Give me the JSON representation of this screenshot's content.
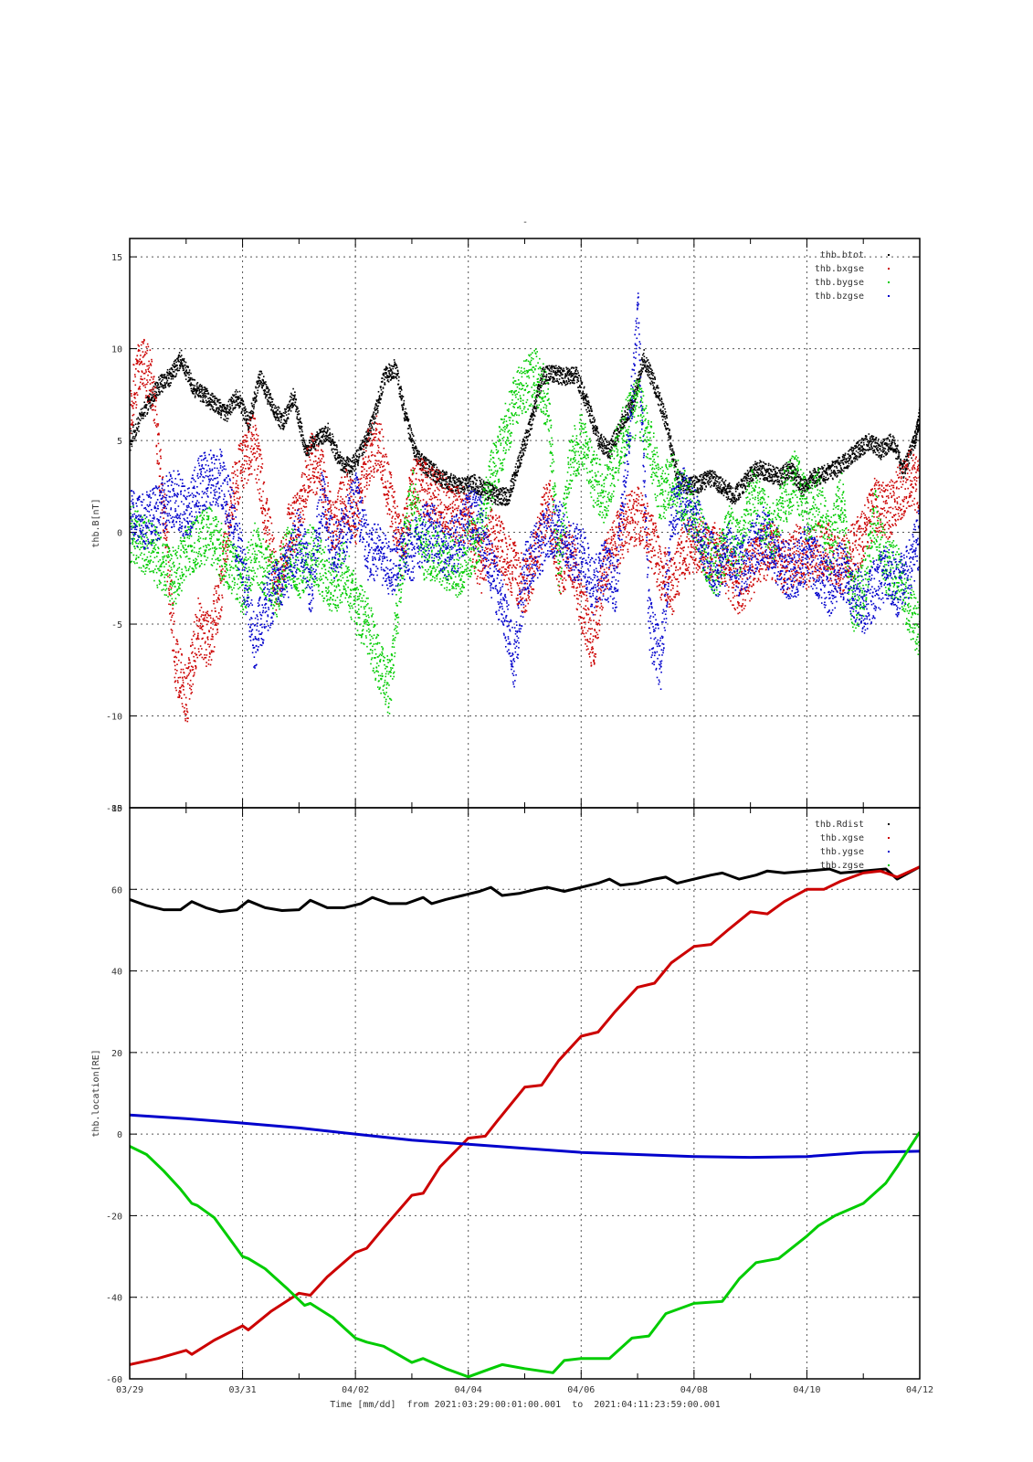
{
  "page_title": "-",
  "xlabel": "Time [mm/dd]  from 2021:03:29:00:01:00.001  to  2021:04:11:23:59:00.001",
  "x_ticks": [
    "03/29",
    "03/31",
    "04/02",
    "04/04",
    "04/06",
    "04/08",
    "04/10",
    "04/12"
  ],
  "chart_data": [
    {
      "type": "scatter",
      "ylabel": "thb.B[nT]",
      "xlim": [
        "03/29",
        "04/12"
      ],
      "ylim": [
        -15,
        16
      ],
      "y_ticks": [
        -15,
        -10,
        -5,
        0,
        5,
        10,
        15
      ],
      "grid": true,
      "legend_position": "top-right",
      "x_unit": "days since 03/29 00:00 UT",
      "series": [
        {
          "name": "thb.btot",
          "color": "#000000",
          "x": [
            0,
            0.3,
            0.5,
            0.7,
            0.9,
            1.1,
            1.3,
            1.5,
            1.7,
            1.9,
            2.1,
            2.3,
            2.5,
            2.7,
            2.9,
            3.1,
            3.3,
            3.5,
            3.7,
            3.9,
            4.1,
            4.3,
            4.5,
            4.7,
            4.9,
            5.1,
            5.3,
            5.5,
            5.7,
            5.9,
            6.1,
            6.3,
            6.5,
            6.7,
            6.9,
            7.1,
            7.3,
            7.5,
            7.7,
            7.9,
            8.1,
            8.3,
            8.5,
            8.7,
            8.9,
            9.1,
            9.3,
            9.5,
            9.7,
            9.9,
            10.1,
            10.3,
            10.5,
            10.7,
            10.9,
            11.1,
            11.3,
            11.5,
            11.7,
            11.9,
            12.1,
            12.3,
            12.5,
            12.7,
            12.9,
            13.1,
            13.3,
            13.5,
            13.7,
            13.9,
            14
          ],
          "y": [
            5,
            7,
            8,
            8.5,
            9.5,
            8,
            7.5,
            7,
            6.5,
            7.5,
            6,
            8.5,
            7,
            6,
            7.5,
            4.5,
            5,
            5.5,
            4,
            3.5,
            4.5,
            6,
            8.5,
            9,
            6,
            4,
            3.5,
            3,
            2.7,
            2.5,
            2.7,
            2.3,
            2,
            2,
            4,
            6,
            8.5,
            8.7,
            8.5,
            8.6,
            7,
            5,
            4.5,
            6,
            7,
            9.5,
            8,
            6,
            3,
            2.5,
            2.7,
            3,
            2.5,
            2,
            2.8,
            3.5,
            3.3,
            3,
            3.5,
            2.5,
            3,
            3.2,
            3.5,
            4,
            4.5,
            5,
            4.5,
            5,
            3.5,
            5,
            6.5
          ]
        },
        {
          "name": "thb.bxgse",
          "color": "#cc0000",
          "x": [
            0,
            0.2,
            0.4,
            0.6,
            0.8,
            1,
            1.2,
            1.4,
            1.6,
            1.8,
            2,
            2.2,
            2.4,
            2.6,
            2.8,
            3,
            3.2,
            3.4,
            3.6,
            3.8,
            4,
            4.2,
            4.4,
            4.6,
            4.8,
            5,
            5.2,
            5.4,
            5.6,
            5.8,
            6,
            6.2,
            6.4,
            6.6,
            6.8,
            7,
            7.2,
            7.4,
            7.6,
            7.8,
            8,
            8.2,
            8.4,
            8.6,
            8.8,
            9,
            9.2,
            9.4,
            9.6,
            9.8,
            10,
            10.2,
            10.4,
            10.6,
            10.8,
            11,
            11.2,
            11.4,
            11.6,
            11.8,
            12,
            12.2,
            12.4,
            12.6,
            12.8,
            13,
            13.2,
            13.4,
            13.6,
            13.8,
            14
          ],
          "y": [
            7,
            9.5,
            8,
            1,
            -7,
            -9,
            -5,
            -6,
            -3,
            2,
            4,
            5,
            1,
            -3,
            0,
            1,
            4,
            3,
            0,
            2,
            1,
            4,
            5,
            2,
            -1,
            2.5,
            2.5,
            2,
            1.5,
            1,
            1,
            -2,
            0,
            -1,
            -2,
            -3,
            -1,
            2,
            -2,
            -1,
            -4,
            -6,
            -2,
            -0.5,
            0.5,
            1,
            0,
            -2,
            -3,
            -1,
            -0.5,
            -1,
            -1,
            -2,
            -3,
            -2,
            -1,
            -1,
            -2,
            -1,
            -1.5,
            -1,
            -1,
            -2,
            -1,
            0,
            1.5,
            1,
            2,
            3,
            2.5
          ]
        },
        {
          "name": "thb.bygse",
          "color": "#00cc00",
          "x": [
            0,
            0.2,
            0.4,
            0.6,
            0.8,
            1,
            1.2,
            1.4,
            1.6,
            1.8,
            2,
            2.2,
            2.4,
            2.6,
            2.8,
            3,
            3.2,
            3.4,
            3.6,
            3.8,
            4,
            4.2,
            4.4,
            4.6,
            4.8,
            5,
            5.2,
            5.4,
            5.6,
            5.8,
            6,
            6.2,
            6.4,
            6.6,
            6.8,
            7,
            7.2,
            7.4,
            7.6,
            7.8,
            8,
            8.2,
            8.4,
            8.6,
            8.8,
            9,
            9.2,
            9.4,
            9.6,
            9.8,
            10,
            10.2,
            10.4,
            10.6,
            10.8,
            11,
            11.2,
            11.4,
            11.6,
            11.8,
            12,
            12.2,
            12.4,
            12.6,
            12.8,
            13,
            13.2,
            13.4,
            13.6,
            13.8,
            14
          ],
          "y": [
            0,
            -0.5,
            -1,
            -2,
            -2.5,
            -1,
            -0.5,
            0,
            -1,
            -2,
            -3,
            -1,
            -2,
            -3,
            -1,
            -2,
            -1,
            -2,
            -3,
            -2,
            -4,
            -5,
            -7,
            -8.5,
            -2,
            2,
            -1,
            -1,
            -1.5,
            -2,
            -1,
            0,
            3,
            5,
            7,
            8,
            8.5,
            7,
            -2,
            4,
            5,
            3,
            2,
            4,
            6,
            7,
            5,
            2,
            3,
            2,
            1,
            -1,
            -2,
            0,
            -1,
            2,
            1,
            0,
            2,
            3,
            1,
            2,
            -1,
            2,
            -4,
            -3,
            1,
            -2,
            -2,
            -4,
            -5.5
          ]
        },
        {
          "name": "thb.bzgse",
          "color": "#0000cc",
          "x": [
            0,
            0.2,
            0.4,
            0.6,
            0.8,
            1,
            1.2,
            1.4,
            1.6,
            1.8,
            2,
            2.2,
            2.4,
            2.6,
            2.8,
            3,
            3.2,
            3.4,
            3.6,
            3.8,
            4,
            4.2,
            4.4,
            4.6,
            4.8,
            5,
            5.2,
            5.4,
            5.6,
            5.8,
            6,
            6.2,
            6.4,
            6.6,
            6.8,
            7,
            7.2,
            7.4,
            7.6,
            7.8,
            8,
            8.2,
            8.4,
            8.6,
            8.8,
            9,
            9.2,
            9.4,
            9.6,
            9.8,
            10,
            10.2,
            10.4,
            10.6,
            10.8,
            11,
            11.2,
            11.4,
            11.6,
            11.8,
            12,
            12.2,
            12.4,
            12.6,
            12.8,
            13,
            13.2,
            13.4,
            13.6,
            13.8,
            14
          ],
          "y": [
            1,
            0.5,
            0.8,
            1.5,
            2,
            1,
            2.5,
            3,
            3,
            1,
            -2,
            -6,
            -4,
            -3,
            -2,
            0,
            -3,
            2,
            -1,
            0,
            2,
            -1,
            -1,
            -2,
            -1,
            -1,
            0,
            0,
            -1,
            -0.5,
            1,
            0.5,
            -2,
            -4,
            -7,
            -2,
            -1,
            0,
            0.5,
            -1,
            -1,
            -3,
            -2,
            -3,
            4,
            12,
            -5,
            -7,
            1,
            2,
            1,
            -1,
            -2,
            -1,
            -2,
            -1,
            0,
            -1,
            -2,
            -2,
            -1,
            -2,
            -3,
            -2,
            -3,
            -4,
            -3,
            -2,
            -3,
            -2,
            0
          ]
        }
      ]
    },
    {
      "type": "line",
      "ylabel": "thb.location[RE]",
      "xlim": [
        "03/29",
        "04/12"
      ],
      "ylim": [
        -60,
        80
      ],
      "y_ticks": [
        -60,
        -40,
        -20,
        0,
        20,
        40,
        60,
        80
      ],
      "grid": true,
      "legend_position": "top-right",
      "x_unit": "days since 03/29 00:00 UT",
      "series": [
        {
          "name": "thb.Rdist",
          "color": "#000000",
          "x": [
            0,
            0.3,
            0.6,
            0.9,
            1.1,
            1.35,
            1.6,
            1.9,
            2.1,
            2.4,
            2.7,
            3,
            3.2,
            3.5,
            3.8,
            4.1,
            4.3,
            4.6,
            4.9,
            5.2,
            5.35,
            5.6,
            5.9,
            6.2,
            6.4,
            6.6,
            6.9,
            7.2,
            7.4,
            7.7,
            8,
            8.3,
            8.5,
            8.7,
            9,
            9.3,
            9.5,
            9.7,
            10,
            10.3,
            10.5,
            10.8,
            11.1,
            11.3,
            11.6,
            12,
            12.4,
            12.6,
            13,
            13.4,
            13.6,
            14
          ],
          "y": [
            57.5,
            56,
            55,
            55,
            57,
            55.5,
            54.5,
            55,
            57.2,
            55.5,
            54.8,
            55,
            57.3,
            55.5,
            55.5,
            56.5,
            58,
            56.5,
            56.5,
            58,
            56.5,
            57.5,
            58.5,
            59.5,
            60.5,
            58.5,
            59,
            60,
            60.5,
            59.5,
            60.5,
            61.5,
            62.5,
            61,
            61.5,
            62.5,
            63,
            61.5,
            62.5,
            63.5,
            64,
            62.5,
            63.5,
            64.5,
            64,
            64.5,
            65,
            64,
            64.5,
            65,
            62.5,
            65.5
          ]
        },
        {
          "name": "thb.xgse",
          "color": "#cc0000",
          "x": [
            0,
            0.5,
            1,
            1.1,
            1.5,
            2,
            2.1,
            2.5,
            3,
            3.2,
            3.5,
            4,
            4.2,
            4.5,
            5,
            5.2,
            5.5,
            6,
            6.3,
            6.5,
            7,
            7.3,
            7.6,
            8,
            8.3,
            8.6,
            9,
            9.3,
            9.6,
            10,
            10.3,
            10.6,
            11,
            11.3,
            11.6,
            12,
            12.3,
            12.6,
            13,
            13.3,
            13.6,
            14
          ],
          "y": [
            -56.5,
            -55,
            -53,
            -54,
            -50.5,
            -47,
            -48,
            -43.5,
            -39,
            -39.5,
            -35,
            -29,
            -28,
            -23,
            -15,
            -14.5,
            -8,
            -1,
            -0.5,
            3,
            11.5,
            12,
            18,
            24,
            25,
            30,
            36,
            37,
            42,
            46,
            46.5,
            50,
            54.5,
            54,
            57,
            60,
            60,
            62,
            64,
            64.5,
            63,
            65.5
          ]
        },
        {
          "name": "thb.ygse",
          "color": "#0000cc",
          "x": [
            0,
            1,
            2,
            3,
            4,
            5,
            6,
            7,
            8,
            9,
            10,
            11,
            12,
            13,
            14
          ],
          "y": [
            4.7,
            3.8,
            2.7,
            1.5,
            0,
            -1.5,
            -2.5,
            -3.5,
            -4.5,
            -5,
            -5.5,
            -5.7,
            -5.5,
            -4.5,
            -4.2
          ]
        },
        {
          "name": "thb.zgse",
          "color": "#00cc00",
          "x": [
            0,
            0.3,
            0.6,
            0.9,
            1.1,
            1.2,
            1.5,
            2,
            2.1,
            2.4,
            2.8,
            3.1,
            3.2,
            3.6,
            4,
            4.2,
            4.5,
            5,
            5.2,
            5.6,
            6,
            6.4,
            6.6,
            7,
            7.5,
            7.7,
            8,
            8.5,
            8.9,
            9.2,
            9.5,
            10,
            10.5,
            10.8,
            11.1,
            11.5,
            12,
            12.2,
            12.5,
            13,
            13.4,
            13.6,
            14
          ],
          "y": [
            -3,
            -5,
            -9,
            -13.5,
            -17,
            -17.5,
            -20.5,
            -30,
            -30.5,
            -33,
            -38,
            -42,
            -41.5,
            -45,
            -50,
            -51,
            -52,
            -56,
            -55,
            -57.5,
            -59.5,
            -57.5,
            -56.5,
            -57.5,
            -58.5,
            -55.5,
            -55,
            -55,
            -50,
            -49.5,
            -44,
            -41.5,
            -41,
            -35.5,
            -31.5,
            -30.5,
            -25,
            -22.5,
            -20,
            -17,
            -12,
            -8,
            0.5
          ]
        }
      ]
    }
  ]
}
